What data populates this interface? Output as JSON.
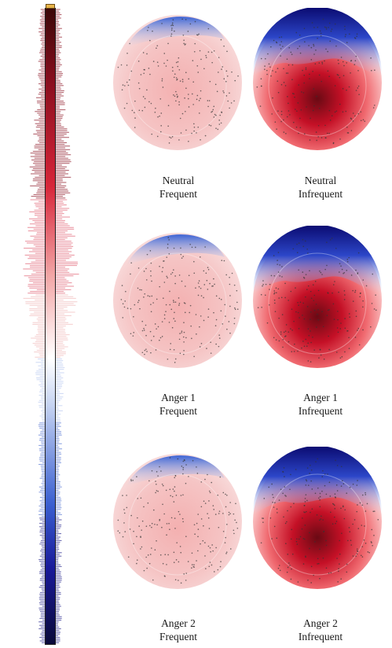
{
  "colorbar": {
    "top_color": "#3b0808",
    "upper_color": "#d7263a",
    "mid_color": "#ffffff",
    "lower_color": "#3a5fd0",
    "bottom_color": "#0a0a3a"
  },
  "maps": [
    {
      "id": "neutral-frequent",
      "line1": "Neutral",
      "line2": "Frequent",
      "intensity": "low"
    },
    {
      "id": "neutral-infrequent",
      "line1": "Neutral",
      "line2": "Infrequent",
      "intensity": "high"
    },
    {
      "id": "anger1-frequent",
      "line1": "Anger 1",
      "line2": "Frequent",
      "intensity": "low"
    },
    {
      "id": "anger1-infrequent",
      "line1": "Anger 1",
      "line2": "Infrequent",
      "intensity": "high"
    },
    {
      "id": "anger2-frequent",
      "line1": "Anger 2",
      "line2": "Frequent",
      "intensity": "low"
    },
    {
      "id": "anger2-infrequent",
      "line1": "Anger 2",
      "line2": "Infrequent",
      "intensity": "high"
    }
  ]
}
